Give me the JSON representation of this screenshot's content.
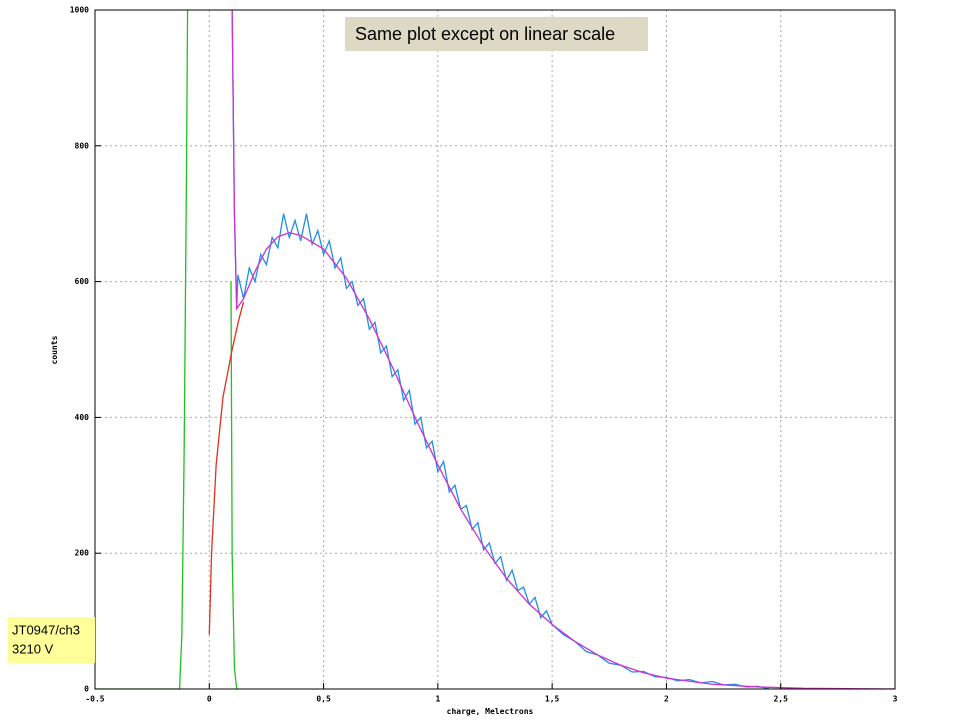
{
  "chart_data": {
    "type": "line",
    "xlabel": "charge, Melectrons",
    "ylabel": "counts",
    "xlim": [
      -0.5,
      3
    ],
    "ylim": [
      0,
      1000
    ],
    "xticks": [
      -0.5,
      0,
      {
        "value": 0.5,
        "label": "0,5"
      },
      1,
      {
        "value": 1.5,
        "label": "1,5"
      },
      2,
      {
        "value": 2.5,
        "label": "2,5"
      },
      3
    ],
    "yticks": [
      0,
      200,
      400,
      600,
      800,
      1000
    ],
    "grid": true,
    "annotations": [
      "Same plot except on linear scale",
      "JT0947/ch3",
      "3210 V"
    ],
    "series": [
      {
        "color": "#22c022",
        "x": [
          -0.5,
          -0.13,
          -0.12,
          -0.11,
          -0.1,
          -0.095,
          0.09,
          0.095,
          0.1,
          0.11,
          0.12
        ],
        "values": [
          0,
          0,
          80,
          350,
          750,
          1000,
          null,
          600,
          200,
          30,
          0
        ]
      },
      {
        "color": "#1e8fe6",
        "x": [
          0.1,
          0.11,
          0.12,
          0.125,
          0.15,
          0.175,
          0.2,
          0.225,
          0.25,
          0.275,
          0.3,
          0.325,
          0.35,
          0.375,
          0.4,
          0.425,
          0.45,
          0.475,
          0.5,
          0.525,
          0.55,
          0.575,
          0.6,
          0.625,
          0.65,
          0.675,
          0.7,
          0.725,
          0.75,
          0.775,
          0.8,
          0.825,
          0.85,
          0.875,
          0.9,
          0.925,
          0.95,
          0.975,
          1.0,
          1.025,
          1.05,
          1.075,
          1.1,
          1.125,
          1.15,
          1.175,
          1.2,
          1.225,
          1.25,
          1.275,
          1.3,
          1.325,
          1.35,
          1.375,
          1.4,
          1.425,
          1.45,
          1.475,
          1.5,
          1.55,
          1.6,
          1.65,
          1.7,
          1.75,
          1.8,
          1.85,
          1.9,
          1.95,
          2.0,
          2.05,
          2.1,
          2.15,
          2.2,
          2.25,
          2.3,
          2.35,
          2.4,
          2.45
        ],
        "values": [
          1000,
          700,
          560,
          610,
          575,
          620,
          600,
          640,
          625,
          665,
          650,
          700,
          665,
          690,
          660,
          700,
          655,
          675,
          640,
          660,
          620,
          635,
          590,
          600,
          565,
          575,
          530,
          540,
          495,
          505,
          460,
          470,
          425,
          440,
          390,
          400,
          355,
          365,
          320,
          335,
          290,
          300,
          265,
          270,
          235,
          245,
          205,
          215,
          185,
          195,
          160,
          175,
          145,
          150,
          125,
          135,
          105,
          115,
          95,
          80,
          70,
          55,
          50,
          38,
          35,
          25,
          26,
          18,
          17,
          12,
          14,
          9,
          11,
          6,
          7,
          3,
          4,
          0
        ]
      },
      {
        "color": "#e03020",
        "x": [
          0,
          0.01,
          0.03,
          0.06,
          0.1,
          0.13,
          0.15
        ],
        "values": [
          80,
          200,
          330,
          430,
          500,
          545,
          570
        ]
      },
      {
        "color": "#d030d0",
        "x": [
          0.1,
          0.11,
          0.12,
          0.15,
          0.2,
          0.25,
          0.3,
          0.35,
          0.4,
          0.5,
          0.6,
          0.7,
          0.8,
          0.9,
          1.0,
          1.1,
          1.2,
          1.3,
          1.4,
          1.5,
          1.6,
          1.7,
          1.8,
          1.9,
          2.0,
          2.2,
          2.4,
          2.6,
          3
        ],
        "values": [
          1000,
          700,
          560,
          575,
          615,
          648,
          666,
          672,
          668,
          648,
          605,
          545,
          475,
          400,
          330,
          265,
          210,
          163,
          125,
          95,
          70,
          50,
          35,
          24,
          16,
          7,
          3,
          1,
          0
        ]
      }
    ]
  }
}
